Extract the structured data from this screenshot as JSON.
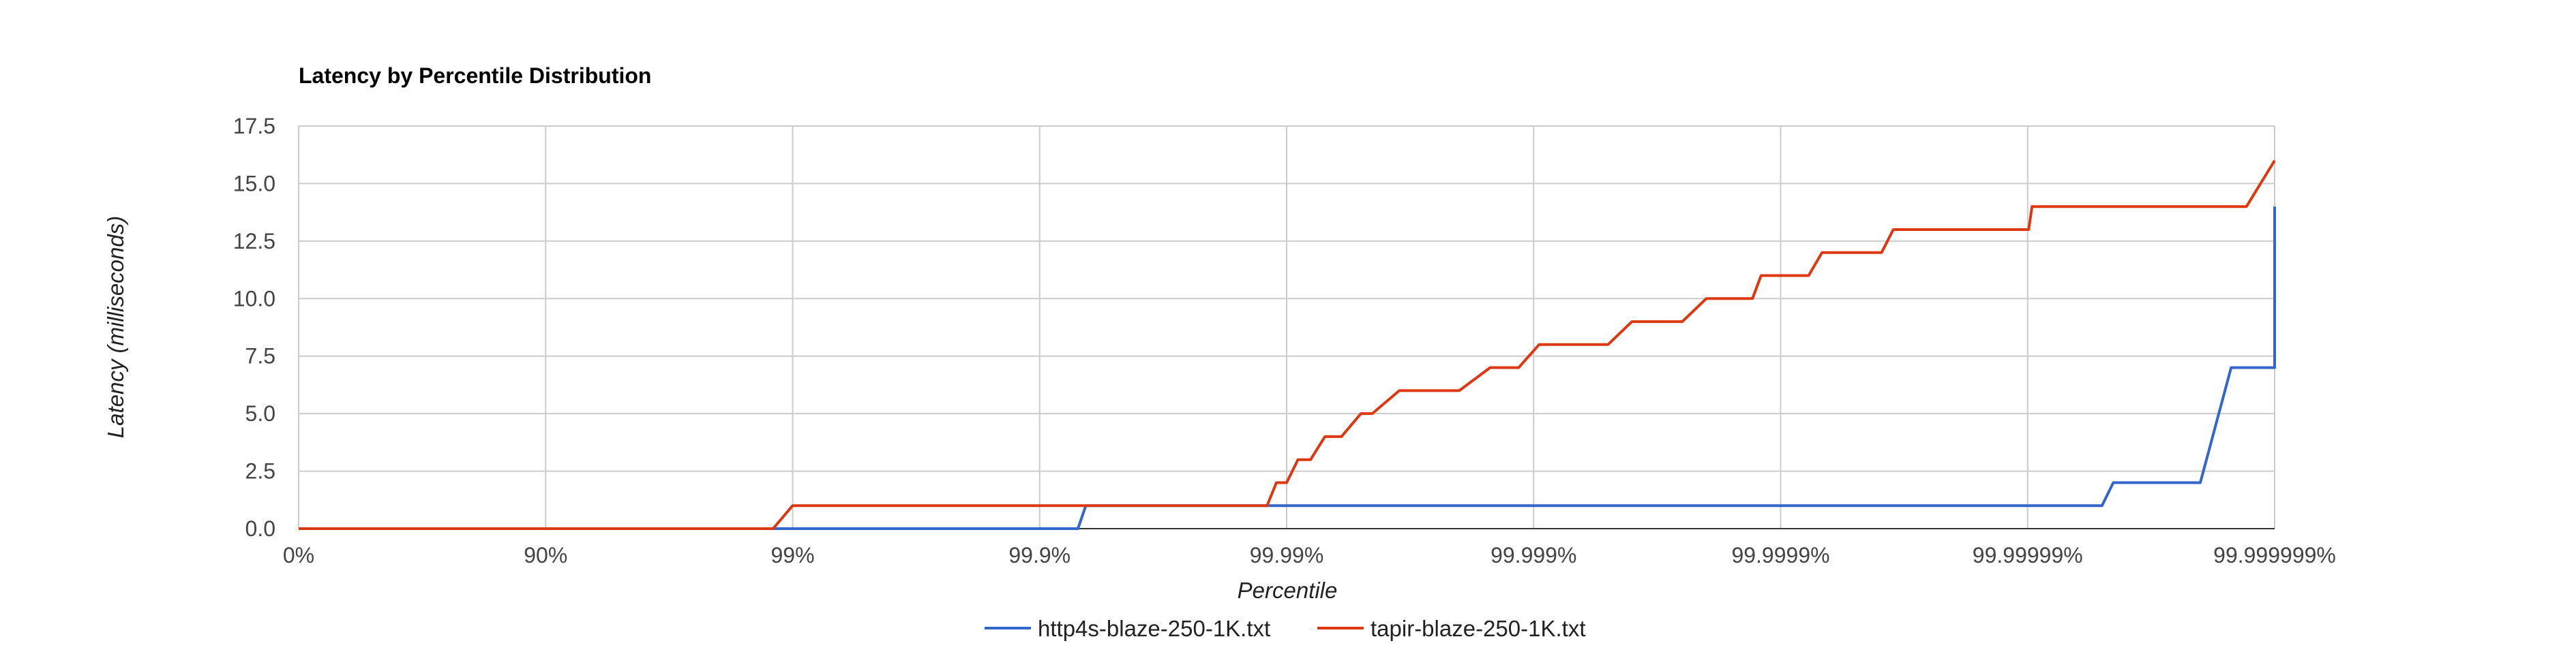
{
  "chart_data": {
    "type": "line",
    "title": "Latency by Percentile Distribution",
    "xlabel": "Percentile",
    "ylabel": "Latency (milliseconds)",
    "x_scale": "log-of-inverse-percentile",
    "x_ticks": [
      "0%",
      "90%",
      "99%",
      "99.9%",
      "99.99%",
      "99.999%",
      "99.9999%",
      "99.99999%",
      "99.999999%"
    ],
    "y_ticks": [
      "0.0",
      "2.5",
      "5.0",
      "7.5",
      "10.0",
      "12.5",
      "15.0",
      "17.5"
    ],
    "ylim": [
      0,
      17.5
    ],
    "grid": true,
    "legend_position": "bottom",
    "colors": {
      "http4s": "#3366cc",
      "tapir": "#dc3912"
    },
    "series": [
      {
        "name": "http4s-blaze-250-1K.txt",
        "color": "#3366cc",
        "points": [
          [
            "0%",
            0
          ],
          [
            "99.9%",
            0
          ],
          [
            "99.93%",
            0
          ],
          [
            "99.935%",
            1
          ],
          [
            "99.999995%",
            1
          ],
          [
            "99.9999955%",
            2
          ],
          [
            "99.999998%",
            2
          ],
          [
            "99.9999985%",
            7
          ],
          [
            "99.999999%",
            7
          ],
          [
            "99.9999993%",
            8
          ],
          [
            "99.9999999%",
            8
          ],
          [
            "99.99999995%",
            14
          ]
        ]
      },
      {
        "name": "tapir-blaze-250-1K.txt",
        "color": "#dc3912",
        "points": [
          [
            "0%",
            0
          ],
          [
            "98.8%",
            0
          ],
          [
            "99.0%",
            1
          ],
          [
            "99.988%",
            1
          ],
          [
            "99.989%",
            2
          ],
          [
            "99.99%",
            2
          ],
          [
            "99.991%",
            3
          ],
          [
            "99.992%",
            3
          ],
          [
            "99.993%",
            4
          ],
          [
            "99.994%",
            4
          ],
          [
            "99.995%",
            5
          ],
          [
            "99.9955%",
            5
          ],
          [
            "99.9965%",
            6
          ],
          [
            "99.998%",
            6
          ],
          [
            "99.9985%",
            7
          ],
          [
            "99.99885%",
            7
          ],
          [
            "99.99905%",
            8
          ],
          [
            "99.9995%",
            8
          ],
          [
            "99.9996%",
            9
          ],
          [
            "99.99975%",
            9
          ],
          [
            "99.9998%",
            10
          ],
          [
            "99.99987%",
            10
          ],
          [
            "99.99988%",
            11
          ],
          [
            "99.999923%",
            11
          ],
          [
            "99.999932%",
            12
          ],
          [
            "99.999961%",
            12
          ],
          [
            "99.999965%",
            13
          ],
          [
            "99.9999901%",
            13
          ],
          [
            "99.9999904%",
            14
          ],
          [
            "99.9999987%",
            14
          ],
          [
            "99.9999991%",
            16
          ]
        ]
      }
    ]
  }
}
